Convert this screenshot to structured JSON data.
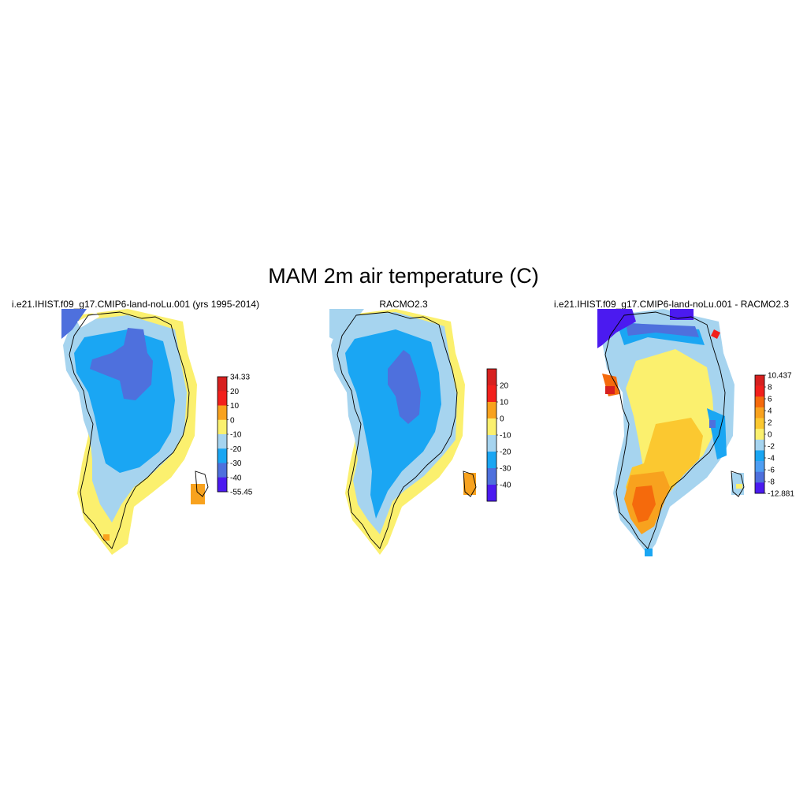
{
  "title": "MAM 2m air temperature (C)",
  "panels": [
    {
      "title": "i.e21.IHIST.f09_g17.CMIP6-land-noLu.001 (yrs 1995-2014)",
      "colorbar": {
        "labels": [
          "34.33",
          "20",
          "10",
          "0",
          "-10",
          "-20",
          "-30",
          "-40",
          "-55.45"
        ],
        "colors": [
          "#d7201f",
          "#f2201c",
          "#f8a21e",
          "#fbf06e",
          "#a6d4ef",
          "#1aa6f3",
          "#4e70dd",
          "#4b1af0"
        ]
      }
    },
    {
      "title": "RACMO2.3",
      "colorbar": {
        "labels": [
          "20",
          "10",
          "0",
          "-10",
          "-20",
          "-30",
          "-40"
        ],
        "colors": [
          "#d7201f",
          "#f2201c",
          "#f8a21e",
          "#fbf06e",
          "#a6d4ef",
          "#1aa6f3",
          "#4e70dd",
          "#4b1af0"
        ]
      }
    },
    {
      "title": "i.e21.IHIST.f09_g17.CMIP6-land-noLu.001 - RACMO2.3",
      "colorbar": {
        "labels": [
          "10.437",
          "8",
          "6",
          "4",
          "2",
          "0",
          "-2",
          "-4",
          "-6",
          "-8",
          "-12.881"
        ],
        "colors": [
          "#d7201f",
          "#f2201c",
          "#f56a0c",
          "#f8a21e",
          "#fbc830",
          "#fbf06e",
          "#a6d4ef",
          "#1aa6f3",
          "#4e9ef3",
          "#4e70dd",
          "#4b1af0"
        ]
      }
    }
  ]
}
